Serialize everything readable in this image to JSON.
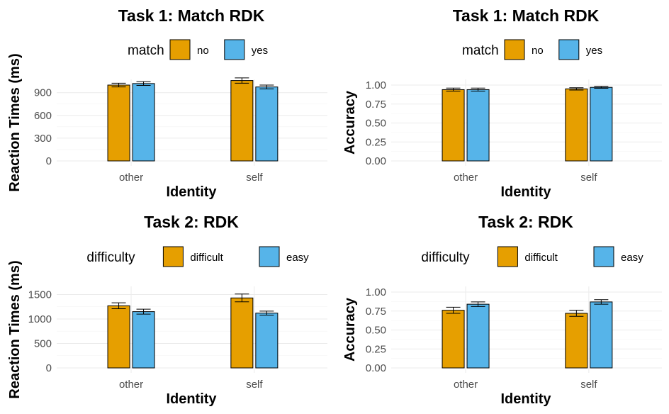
{
  "colors": {
    "series_a": "#E69F00",
    "series_b": "#56B4E9"
  },
  "chart_data": [
    {
      "type": "bar",
      "title": "Task 1: Match RDK",
      "xlabel": "Identity",
      "ylabel": "Reaction Times (ms)",
      "categories": [
        "other",
        "self"
      ],
      "legend_title": "match",
      "legend_position": "top",
      "ylim": [
        0,
        1000
      ],
      "yticks": [
        0,
        300,
        600,
        900
      ],
      "ytick_labels": [
        "0",
        "300",
        "600",
        "900"
      ],
      "series": [
        {
          "name": "no",
          "values": [
            1000,
            1060
          ],
          "error": [
            25,
            35
          ]
        },
        {
          "name": "yes",
          "values": [
            1020,
            975
          ],
          "error": [
            25,
            25
          ]
        }
      ]
    },
    {
      "type": "bar",
      "title": "Task 1: Match RDK",
      "xlabel": "Identity",
      "ylabel": "Accuracy",
      "categories": [
        "other",
        "self"
      ],
      "legend_title": "match",
      "legend_position": "top",
      "ylim": [
        0,
        1.0
      ],
      "yticks": [
        0,
        0.25,
        0.5,
        0.75,
        1.0
      ],
      "ytick_labels": [
        "0.00",
        "0.25",
        "0.50",
        "0.75",
        "1.00"
      ],
      "series": [
        {
          "name": "no",
          "values": [
            0.94,
            0.95
          ],
          "error": [
            0.02,
            0.015
          ]
        },
        {
          "name": "yes",
          "values": [
            0.94,
            0.97
          ],
          "error": [
            0.02,
            0.012
          ]
        }
      ]
    },
    {
      "type": "bar",
      "title": "Task 2: RDK",
      "xlabel": "Identity",
      "ylabel": "Reaction Times (ms)",
      "categories": [
        "other",
        "self"
      ],
      "legend_title": "difficulty",
      "legend_position": "top",
      "ylim": [
        0,
        1550
      ],
      "yticks": [
        0,
        500,
        1000,
        1500
      ],
      "ytick_labels": [
        "0",
        "500",
        "1000",
        "1500"
      ],
      "series": [
        {
          "name": "difficult",
          "values": [
            1270,
            1430
          ],
          "error": [
            60,
            80
          ]
        },
        {
          "name": "easy",
          "values": [
            1150,
            1120
          ],
          "error": [
            50,
            40
          ]
        }
      ]
    },
    {
      "type": "bar",
      "title": "Task 2: RDK",
      "xlabel": "Identity",
      "ylabel": "Accuracy",
      "categories": [
        "other",
        "self"
      ],
      "legend_title": "difficulty",
      "legend_position": "top",
      "ylim": [
        0,
        1.0
      ],
      "yticks": [
        0,
        0.25,
        0.5,
        0.75,
        1.0
      ],
      "ytick_labels": [
        "0.00",
        "0.25",
        "0.50",
        "0.75",
        "1.00"
      ],
      "series": [
        {
          "name": "difficult",
          "values": [
            0.76,
            0.72
          ],
          "error": [
            0.04,
            0.04
          ]
        },
        {
          "name": "easy",
          "values": [
            0.84,
            0.87
          ],
          "error": [
            0.03,
            0.03
          ]
        }
      ]
    }
  ]
}
